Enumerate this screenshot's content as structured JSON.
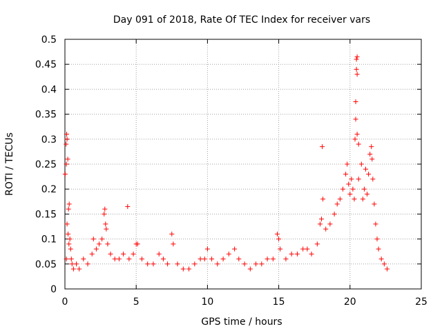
{
  "chart_data": {
    "type": "scatter",
    "title": "Day 091 of 2018, Rate Of TEC Index for receiver vars",
    "xlabel": "GPS time / hours",
    "ylabel": "ROTI / TECUs",
    "xlim": [
      0,
      25
    ],
    "ylim": [
      0,
      0.5
    ],
    "xticks": [
      0,
      5,
      10,
      15,
      20,
      25
    ],
    "yticks": [
      0,
      0.05,
      0.1,
      0.15,
      0.2,
      0.25,
      0.3,
      0.35,
      0.4,
      0.45,
      0.5
    ],
    "grid": true,
    "marker": "+",
    "color": "#ff0000",
    "series": [
      {
        "values": [
          [
            0.02,
            0.23
          ],
          [
            0.08,
            0.29
          ],
          [
            0.1,
            0.25
          ],
          [
            0.12,
            0.31
          ],
          [
            0.15,
            0.3
          ],
          [
            0.2,
            0.26
          ],
          [
            0.22,
            0.11
          ],
          [
            0.25,
            0.16
          ],
          [
            0.3,
            0.17
          ],
          [
            0.15,
            0.13
          ],
          [
            0.28,
            0.09
          ],
          [
            0.35,
            0.1
          ],
          [
            0.4,
            0.08
          ],
          [
            0.1,
            0.06
          ],
          [
            0.45,
            0.06
          ],
          [
            0.5,
            0.05
          ],
          [
            0.6,
            0.04
          ],
          [
            0.8,
            0.05
          ],
          [
            1.0,
            0.04
          ],
          [
            1.3,
            0.06
          ],
          [
            1.6,
            0.05
          ],
          [
            1.9,
            0.07
          ],
          [
            2.0,
            0.1
          ],
          [
            2.2,
            0.08
          ],
          [
            2.4,
            0.09
          ],
          [
            2.6,
            0.1
          ],
          [
            2.75,
            0.15
          ],
          [
            2.8,
            0.16
          ],
          [
            2.85,
            0.13
          ],
          [
            2.9,
            0.12
          ],
          [
            3.0,
            0.09
          ],
          [
            3.2,
            0.07
          ],
          [
            3.5,
            0.06
          ],
          [
            3.8,
            0.06
          ],
          [
            4.1,
            0.07
          ],
          [
            4.4,
            0.165
          ],
          [
            4.5,
            0.06
          ],
          [
            4.8,
            0.07
          ],
          [
            5.0,
            0.09
          ],
          [
            5.1,
            0.09
          ],
          [
            5.4,
            0.06
          ],
          [
            5.8,
            0.05
          ],
          [
            6.2,
            0.05
          ],
          [
            6.6,
            0.07
          ],
          [
            6.9,
            0.06
          ],
          [
            7.2,
            0.05
          ],
          [
            7.5,
            0.11
          ],
          [
            7.6,
            0.09
          ],
          [
            7.9,
            0.05
          ],
          [
            8.3,
            0.04
          ],
          [
            8.7,
            0.04
          ],
          [
            9.1,
            0.05
          ],
          [
            9.5,
            0.06
          ],
          [
            9.8,
            0.06
          ],
          [
            10.0,
            0.08
          ],
          [
            10.3,
            0.06
          ],
          [
            10.7,
            0.05
          ],
          [
            11.1,
            0.06
          ],
          [
            11.5,
            0.07
          ],
          [
            11.9,
            0.08
          ],
          [
            12.2,
            0.06
          ],
          [
            12.6,
            0.05
          ],
          [
            13.0,
            0.04
          ],
          [
            13.4,
            0.05
          ],
          [
            13.8,
            0.05
          ],
          [
            14.2,
            0.06
          ],
          [
            14.6,
            0.06
          ],
          [
            14.9,
            0.11
          ],
          [
            15.0,
            0.1
          ],
          [
            15.1,
            0.08
          ],
          [
            15.5,
            0.06
          ],
          [
            15.9,
            0.07
          ],
          [
            16.3,
            0.07
          ],
          [
            16.7,
            0.08
          ],
          [
            17.0,
            0.08
          ],
          [
            17.3,
            0.07
          ],
          [
            17.7,
            0.09
          ],
          [
            17.9,
            0.13
          ],
          [
            18.0,
            0.14
          ],
          [
            18.05,
            0.285
          ],
          [
            18.1,
            0.18
          ],
          [
            18.3,
            0.12
          ],
          [
            18.6,
            0.13
          ],
          [
            18.9,
            0.15
          ],
          [
            19.1,
            0.17
          ],
          [
            19.3,
            0.18
          ],
          [
            19.5,
            0.2
          ],
          [
            19.7,
            0.23
          ],
          [
            19.8,
            0.25
          ],
          [
            19.9,
            0.21
          ],
          [
            20.0,
            0.19
          ],
          [
            20.1,
            0.22
          ],
          [
            20.2,
            0.2
          ],
          [
            20.3,
            0.18
          ],
          [
            20.35,
            0.3
          ],
          [
            20.4,
            0.375
          ],
          [
            20.45,
            0.46
          ],
          [
            20.5,
            0.465
          ],
          [
            20.45,
            0.44
          ],
          [
            20.5,
            0.43
          ],
          [
            20.4,
            0.34
          ],
          [
            20.5,
            0.31
          ],
          [
            20.6,
            0.29
          ],
          [
            20.6,
            0.22
          ],
          [
            20.8,
            0.25
          ],
          [
            20.9,
            0.18
          ],
          [
            21.0,
            0.2
          ],
          [
            21.1,
            0.24
          ],
          [
            21.2,
            0.19
          ],
          [
            21.3,
            0.23
          ],
          [
            21.4,
            0.27
          ],
          [
            21.5,
            0.285
          ],
          [
            21.55,
            0.26
          ],
          [
            21.6,
            0.22
          ],
          [
            21.7,
            0.17
          ],
          [
            21.8,
            0.13
          ],
          [
            21.9,
            0.1
          ],
          [
            22.0,
            0.08
          ],
          [
            22.2,
            0.06
          ],
          [
            22.4,
            0.05
          ],
          [
            22.6,
            0.04
          ]
        ]
      }
    ]
  }
}
